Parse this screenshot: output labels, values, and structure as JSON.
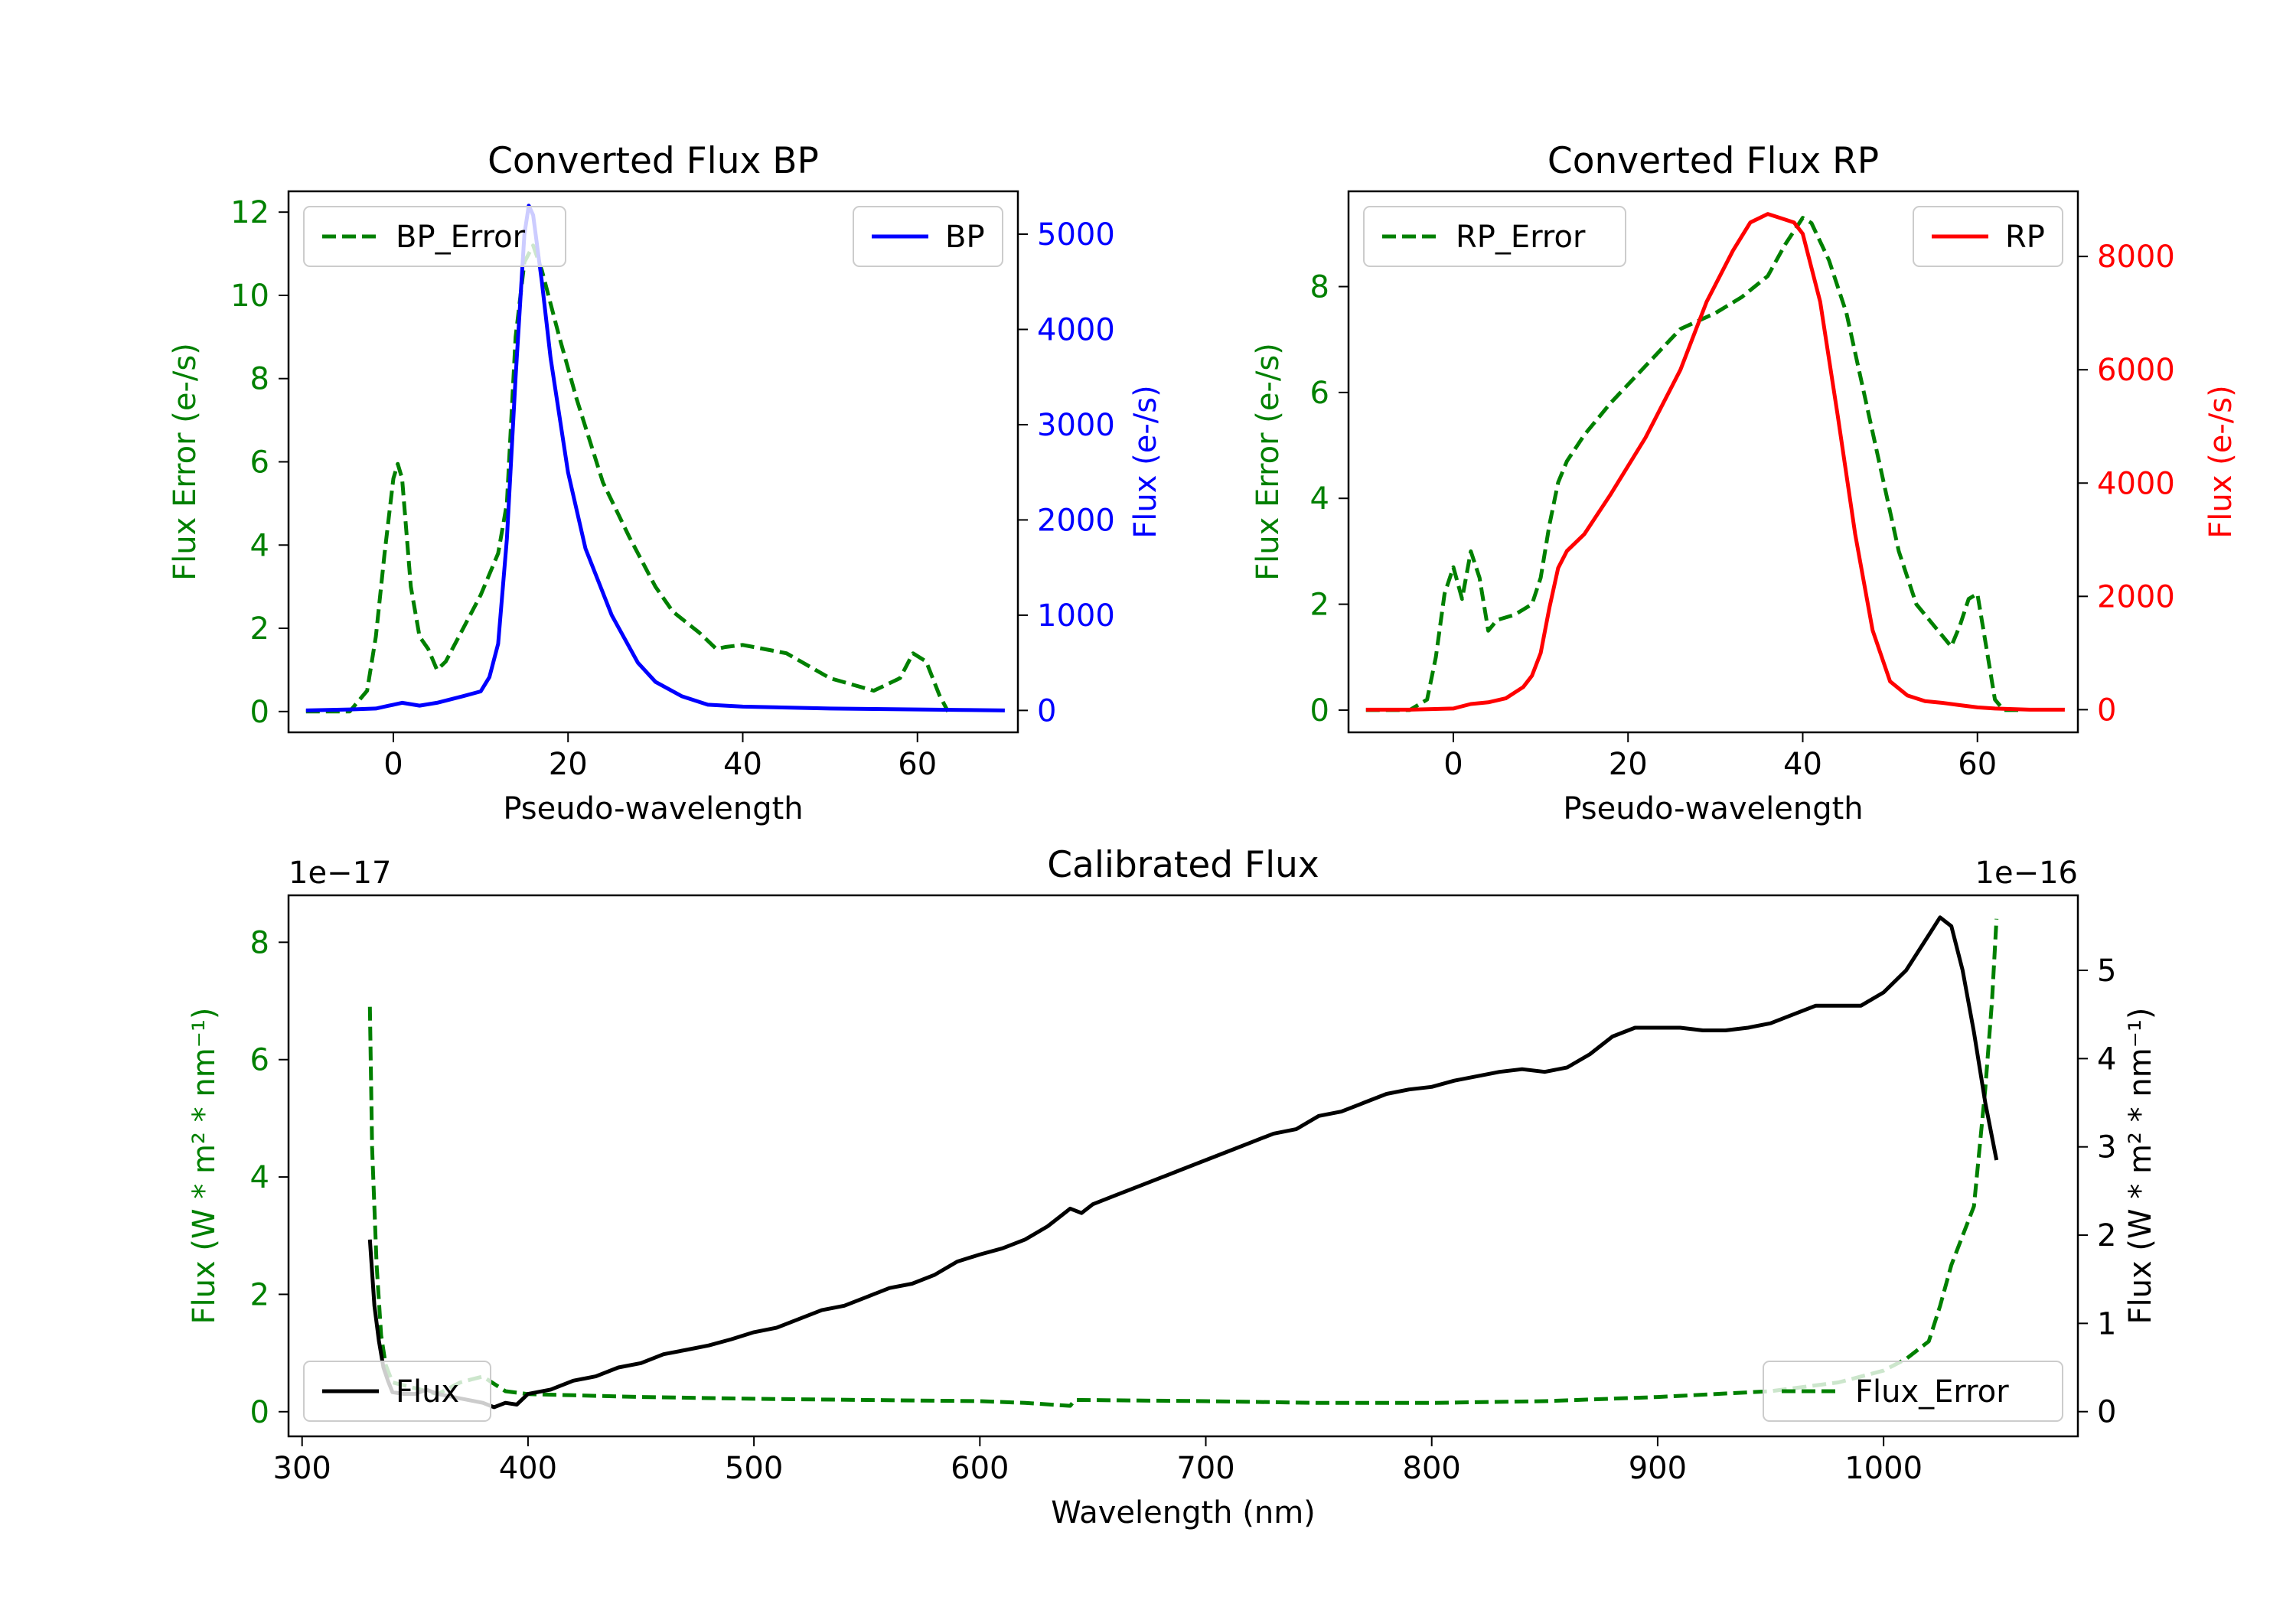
{
  "colors": {
    "bp": "#0000ff",
    "rp": "#ff0000",
    "error": "#008000",
    "flux": "#000000",
    "axis": "#000000",
    "legend_border": "#cccccc"
  },
  "chart_data": [
    {
      "id": "bp",
      "type": "line",
      "title": "Converted Flux BP",
      "xlabel": "Pseudo-wavelength",
      "ylabel_left": "Flux Error (e-/s)",
      "ylabel_right": "Flux (e-/s)",
      "xlim": [
        -12,
        71.5
      ],
      "ylim_left": [
        -0.5,
        12.5
      ],
      "ylim_right": [
        -230,
        5450
      ],
      "xticks": [
        0,
        20,
        40,
        60
      ],
      "xtick_labels": [
        "0",
        "20",
        "40",
        "60"
      ],
      "yticks_left": [
        0,
        2,
        4,
        6,
        8,
        10,
        12
      ],
      "ytick_labels_left": [
        "0",
        "2",
        "4",
        "6",
        "8",
        "10",
        "12"
      ],
      "yticks_right": [
        0,
        1000,
        2000,
        3000,
        4000,
        5000
      ],
      "ytick_labels_right": [
        "0",
        "1000",
        "2000",
        "3000",
        "4000",
        "5000"
      ],
      "series": [
        {
          "name": "BP_Error",
          "axis": "left",
          "style": "dashed",
          "color": "#008000",
          "x": [
            -10,
            -5,
            -3,
            -2,
            -1,
            0,
            0.5,
            1,
            2,
            3,
            4,
            5,
            6,
            8,
            10,
            12,
            13,
            14,
            15,
            16,
            17,
            19,
            21,
            24,
            27,
            30,
            32,
            35,
            37,
            38,
            40,
            45,
            50,
            55,
            58,
            59.5,
            61,
            62.5,
            63.5
          ],
          "y": [
            0,
            0,
            0.5,
            1.8,
            3.8,
            5.6,
            5.95,
            5.6,
            3,
            1.8,
            1.5,
            1,
            1.2,
            2,
            2.8,
            3.8,
            5,
            9,
            10.8,
            11.2,
            10.6,
            9,
            7.5,
            5.5,
            4.2,
            3,
            2.4,
            1.9,
            1.5,
            1.55,
            1.6,
            1.4,
            0.8,
            0.5,
            0.8,
            1.4,
            1.2,
            0.4,
            0
          ]
        },
        {
          "name": "BP",
          "axis": "right",
          "style": "solid",
          "color": "#0000ff",
          "x": [
            -10,
            -5,
            -2,
            0,
            1,
            3,
            5,
            8,
            10,
            11,
            12,
            13,
            14,
            15,
            15.5,
            16,
            17,
            18,
            20,
            22,
            25,
            28,
            30,
            33,
            36,
            40,
            45,
            50,
            55,
            60,
            65,
            70
          ],
          "y": [
            0,
            10,
            20,
            60,
            80,
            50,
            80,
            150,
            200,
            350,
            700,
            1800,
            3500,
            5000,
            5300,
            5200,
            4500,
            3700,
            2500,
            1700,
            1000,
            500,
            300,
            150,
            60,
            40,
            30,
            20,
            15,
            10,
            5,
            0
          ]
        }
      ],
      "legend": [
        {
          "label": "BP_Error",
          "position": "upper-left"
        },
        {
          "label": "BP",
          "position": "upper-right"
        }
      ]
    },
    {
      "id": "rp",
      "type": "line",
      "title": "Converted Flux RP",
      "xlabel": "Pseudo-wavelength",
      "ylabel_left": "Flux Error (e-/s)",
      "ylabel_right": "Flux (e-/s)",
      "xlim": [
        -12,
        71.5
      ],
      "ylim_left": [
        -0.42,
        9.8
      ],
      "ylim_right": [
        -400,
        9150
      ],
      "xticks": [
        0,
        20,
        40,
        60
      ],
      "xtick_labels": [
        "0",
        "20",
        "40",
        "60"
      ],
      "yticks_left": [
        0,
        2,
        4,
        6,
        8
      ],
      "ytick_labels_left": [
        "0",
        "2",
        "4",
        "6",
        "8"
      ],
      "yticks_right": [
        0,
        2000,
        4000,
        6000,
        8000
      ],
      "ytick_labels_right": [
        "0",
        "2000",
        "4000",
        "6000",
        "8000"
      ],
      "series": [
        {
          "name": "RP_Error",
          "axis": "left",
          "style": "dashed",
          "color": "#008000",
          "x": [
            -10,
            -5,
            -3,
            -2,
            -1,
            0,
            1,
            2,
            3,
            4,
            5,
            7,
            9,
            10,
            11,
            12,
            13,
            15,
            18,
            22,
            26,
            30,
            33,
            36,
            38,
            40,
            41,
            43,
            45,
            47,
            49,
            51,
            53,
            55,
            57,
            58,
            59,
            60,
            61,
            62,
            63,
            65
          ],
          "y": [
            0,
            0,
            0.2,
            1,
            2.2,
            2.7,
            2.1,
            3,
            2.5,
            1.5,
            1.7,
            1.8,
            2,
            2.5,
            3.5,
            4.3,
            4.7,
            5.2,
            5.8,
            6.5,
            7.2,
            7.5,
            7.8,
            8.2,
            8.8,
            9.3,
            9.2,
            8.5,
            7.5,
            6,
            4.5,
            3,
            2,
            1.6,
            1.2,
            1.6,
            2.1,
            2.2,
            1.2,
            0.2,
            0,
            0
          ]
        },
        {
          "name": "RP",
          "axis": "right",
          "style": "solid",
          "color": "#ff0000",
          "x": [
            -10,
            -5,
            0,
            2,
            4,
            6,
            8,
            9,
            10,
            11,
            12,
            13,
            15,
            18,
            22,
            26,
            29,
            32,
            34,
            36,
            37,
            38,
            39,
            40,
            42,
            44,
            46,
            48,
            50,
            52,
            54,
            56,
            58,
            60,
            62,
            64,
            66,
            70
          ],
          "y": [
            0,
            0,
            20,
            100,
            130,
            200,
            400,
            600,
            1000,
            1800,
            2500,
            2800,
            3100,
            3800,
            4800,
            6000,
            7200,
            8100,
            8600,
            8750,
            8700,
            8650,
            8600,
            8400,
            7200,
            5200,
            3100,
            1400,
            500,
            250,
            150,
            120,
            80,
            40,
            20,
            10,
            0,
            0
          ]
        }
      ],
      "legend": [
        {
          "label": "RP_Error",
          "position": "upper-left"
        },
        {
          "label": "RP",
          "position": "upper-right"
        }
      ]
    },
    {
      "id": "cal",
      "type": "line",
      "title": "Calibrated Flux",
      "xlabel": "Wavelength (nm)",
      "ylabel_left": "Flux (W * m² * nm⁻¹)",
      "ylabel_right": "Flux (W * m² * nm⁻¹)",
      "offset_left": "1e−17",
      "offset_right": "1e−16",
      "xlim": [
        294,
        1086
      ],
      "ylim_left": [
        -0.42,
        8.8
      ],
      "ylim_right": [
        -0.28,
        5.85
      ],
      "xticks": [
        300,
        400,
        500,
        600,
        700,
        800,
        900,
        1000
      ],
      "xtick_labels": [
        "300",
        "400",
        "500",
        "600",
        "700",
        "800",
        "900",
        "1000"
      ],
      "yticks_left": [
        0,
        2,
        4,
        6,
        8
      ],
      "ytick_labels_left": [
        "0",
        "2",
        "4",
        "6",
        "8"
      ],
      "yticks_right": [
        0,
        1,
        2,
        3,
        4,
        5
      ],
      "ytick_labels_right": [
        "0",
        "1",
        "2",
        "3",
        "4",
        "5"
      ],
      "series": [
        {
          "name": "Flux_Error",
          "axis": "left",
          "style": "dashed",
          "color": "#008000",
          "x": [
            330,
            331,
            333,
            335,
            337,
            340,
            345,
            350,
            360,
            370,
            375,
            380,
            390,
            400,
            420,
            450,
            500,
            550,
            600,
            620,
            640,
            642,
            645,
            700,
            750,
            800,
            850,
            900,
            950,
            980,
            1000,
            1010,
            1020,
            1025,
            1030,
            1035,
            1040,
            1045,
            1048,
            1050
          ],
          "y": [
            6.9,
            4.5,
            2.5,
            1.3,
            0.8,
            0.5,
            0.45,
            0.4,
            0.3,
            0.5,
            0.55,
            0.6,
            0.35,
            0.3,
            0.28,
            0.25,
            0.22,
            0.2,
            0.18,
            0.15,
            0.1,
            0.2,
            0.2,
            0.18,
            0.15,
            0.15,
            0.18,
            0.25,
            0.35,
            0.5,
            0.7,
            0.9,
            1.2,
            1.8,
            2.5,
            3,
            3.5,
            5.5,
            7,
            8.4
          ]
        },
        {
          "name": "Flux",
          "axis": "right",
          "style": "solid",
          "color": "#000000",
          "x": [
            330,
            332,
            334,
            336,
            338,
            340,
            345,
            350,
            355,
            360,
            370,
            380,
            385,
            390,
            395,
            400,
            410,
            420,
            430,
            440,
            450,
            460,
            470,
            480,
            490,
            500,
            510,
            520,
            530,
            540,
            550,
            560,
            570,
            580,
            590,
            600,
            610,
            620,
            630,
            640,
            645,
            650,
            660,
            670,
            680,
            690,
            700,
            710,
            720,
            730,
            740,
            750,
            760,
            770,
            780,
            790,
            800,
            810,
            820,
            830,
            840,
            850,
            860,
            870,
            880,
            890,
            900,
            910,
            920,
            930,
            940,
            950,
            960,
            970,
            980,
            990,
            1000,
            1010,
            1020,
            1025,
            1030,
            1035,
            1040,
            1045,
            1050
          ],
          "y": [
            1.95,
            1.2,
            0.8,
            0.5,
            0.35,
            0.22,
            0.2,
            0.2,
            0.25,
            0.2,
            0.15,
            0.1,
            0.05,
            0.1,
            0.08,
            0.2,
            0.25,
            0.35,
            0.4,
            0.5,
            0.55,
            0.65,
            0.7,
            0.75,
            0.82,
            0.9,
            0.95,
            1.05,
            1.15,
            1.2,
            1.3,
            1.4,
            1.45,
            1.55,
            1.7,
            1.78,
            1.85,
            1.95,
            2.1,
            2.3,
            2.25,
            2.35,
            2.45,
            2.55,
            2.65,
            2.75,
            2.85,
            2.95,
            3.05,
            3.15,
            3.2,
            3.35,
            3.4,
            3.5,
            3.6,
            3.65,
            3.68,
            3.75,
            3.8,
            3.85,
            3.88,
            3.85,
            3.9,
            4.05,
            4.25,
            4.35,
            4.35,
            4.35,
            4.32,
            4.32,
            4.35,
            4.4,
            4.5,
            4.6,
            4.6,
            4.6,
            4.75,
            5.0,
            5.4,
            5.6,
            5.5,
            5.0,
            4.3,
            3.5,
            2.85
          ]
        }
      ],
      "legend": [
        {
          "label": "Flux",
          "position": "lower-left"
        },
        {
          "label": "Flux_Error",
          "position": "lower-right"
        }
      ]
    }
  ]
}
